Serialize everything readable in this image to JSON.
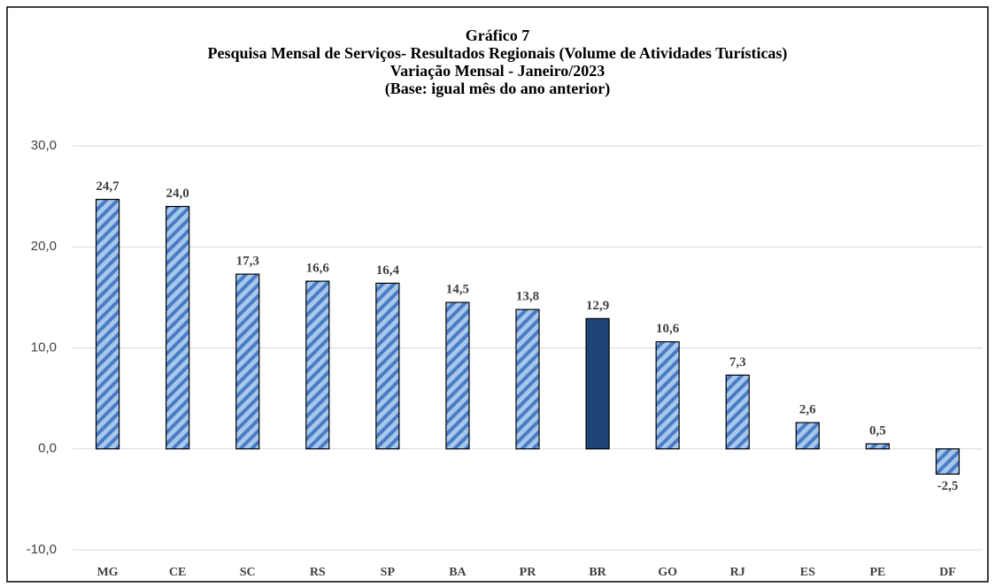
{
  "chart_data": {
    "type": "bar",
    "title": [
      "Gráfico 7",
      "Pesquisa Mensal de Serviços- Resultados Regionais (Volume de Atividades Turísticas)",
      "Variação Mensal - Janeiro/2023",
      "(Base: igual mês do ano anterior)"
    ],
    "categories": [
      "MG",
      "CE",
      "SC",
      "RS",
      "SP",
      "BA",
      "PR",
      "BR",
      "GO",
      "RJ",
      "ES",
      "PE",
      "DF"
    ],
    "values": [
      24.7,
      24.0,
      17.3,
      16.6,
      16.4,
      14.5,
      13.8,
      12.9,
      10.6,
      7.3,
      2.6,
      0.5,
      -2.5
    ],
    "value_labels": [
      "24,7",
      "24,0",
      "17,3",
      "16,6",
      "16,4",
      "14,5",
      "13,8",
      "12,9",
      "10,6",
      "7,3",
      "2,6",
      "0,5",
      "-2,5"
    ],
    "colors": [
      "#a7c7ec",
      "#a7c7ec",
      "#a7c7ec",
      "#a7c7ec",
      "#a7c7ec",
      "#a7c7ec",
      "#a7c7ec",
      "#1f4577",
      "#a7c7ec",
      "#a7c7ec",
      "#a7c7ec",
      "#a7c7ec",
      "#a7c7ec"
    ],
    "hatched": [
      true,
      true,
      true,
      true,
      true,
      true,
      true,
      false,
      true,
      true,
      true,
      true,
      true
    ],
    "hatch_color": "#4a7cc4",
    "ylim": [
      -10,
      30
    ],
    "yticks": [
      {
        "value": -10,
        "label": "-10,0"
      },
      {
        "value": 0,
        "label": "0,0"
      },
      {
        "value": 10,
        "label": "10,0"
      },
      {
        "value": 20,
        "label": "20,0"
      },
      {
        "value": 30,
        "label": "30,0"
      }
    ],
    "grid": true
  }
}
